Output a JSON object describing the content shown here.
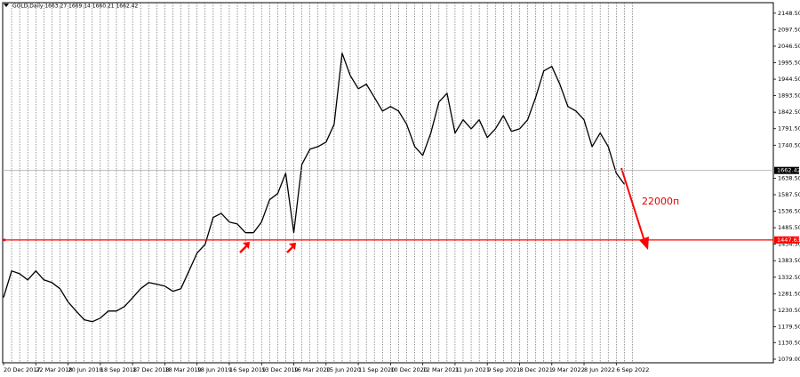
{
  "chart_data": {
    "type": "line",
    "title": "GOLD,Daily  1663.27 1669.14 1660.21 1662.42",
    "annotation": "22000п",
    "categories": [
      "20 Dec 2017",
      null,
      null,
      null,
      "22 Mar 2018",
      null,
      null,
      null,
      "20 Jun 2018",
      null,
      null,
      null,
      "18 Sep 2018",
      null,
      null,
      null,
      "17 Dec 2018",
      null,
      null,
      null,
      "18 Mar 2019",
      null,
      null,
      null,
      "18 Jun 2019",
      null,
      null,
      null,
      "16 Sep 2019",
      null,
      null,
      null,
      "13 Dec 2019",
      null,
      null,
      null,
      "16 Mar 2020",
      null,
      null,
      null,
      "15 Jun 2020",
      null,
      null,
      null,
      "11 Sep 2020",
      null,
      null,
      null,
      "10 Dec 2020",
      null,
      null,
      null,
      "12 Mar 2021",
      null,
      null,
      null,
      "11 Jun 2021",
      null,
      null,
      null,
      "9 Sep 2021",
      null,
      null,
      null,
      "8 Dec 2021",
      null,
      null,
      null,
      "9 Mar 2022",
      null,
      null,
      null,
      "8 Jun 2022",
      null,
      null,
      null,
      "6 Sep 2022",
      null,
      null
    ],
    "series": [
      {
        "name": "GOLD",
        "color": "#000000",
        "values": [
          1270,
          1352,
          1343,
          1324,
          1352,
          1324,
          1316,
          1297,
          1256,
          1228,
          1201,
          1195,
          1206,
          1228,
          1228,
          1242,
          1269,
          1297,
          1316,
          1311,
          1305,
          1289,
          1297,
          1352,
          1407,
          1434,
          1517,
          1530,
          1503,
          1497,
          1470,
          1470,
          1503,
          1572,
          1591,
          1654,
          1470,
          1681,
          1728,
          1736,
          1750,
          1805,
          2025,
          1956,
          1915,
          1929,
          1888,
          1846,
          1860,
          1846,
          1805,
          1736,
          1709,
          1778,
          1874,
          1901,
          1778,
          1819,
          1791,
          1819,
          1764,
          1791,
          1832,
          1783,
          1791,
          1819,
          1888,
          1970,
          1984,
          1929,
          1860,
          1846,
          1819,
          1736,
          1778,
          1736,
          1654,
          1620,
          null
        ]
      }
    ],
    "ylim": [
      1068,
      2181
    ],
    "yticks": [
      {
        "value": 2148.5,
        "label": "2148.50"
      },
      {
        "value": 2097.5,
        "label": "2097.50"
      },
      {
        "value": 2046.5,
        "label": "2046.50"
      },
      {
        "value": 1995.5,
        "label": "1995.50"
      },
      {
        "value": 1944.5,
        "label": "1944.50"
      },
      {
        "value": 1893.5,
        "label": "1893.50"
      },
      {
        "value": 1842.5,
        "label": "1842.50"
      },
      {
        "value": 1791.5,
        "label": "1791.50"
      },
      {
        "value": 1740.5,
        "label": "1740.50"
      },
      {
        "value": 1638.5,
        "label": "1638.50"
      },
      {
        "value": 1587.5,
        "label": "1587.50"
      },
      {
        "value": 1536.5,
        "label": "1536.50"
      },
      {
        "value": 1485.5,
        "label": "1485.50"
      },
      {
        "value": 1434.5,
        "label": "1434.50"
      },
      {
        "value": 1383.5,
        "label": "1383.50"
      },
      {
        "value": 1332.5,
        "label": "1332.50"
      },
      {
        "value": 1281.5,
        "label": "1281.50"
      },
      {
        "value": 1230.5,
        "label": "1230.50"
      },
      {
        "value": 1179.5,
        "label": "1179.50"
      },
      {
        "value": 1130.5,
        "label": "1130.50"
      },
      {
        "value": 1079,
        "label": "1079.00"
      }
    ],
    "current_price": 1662.42,
    "level_price": 1447.63,
    "level_color": "#ff0000",
    "grid": true
  }
}
